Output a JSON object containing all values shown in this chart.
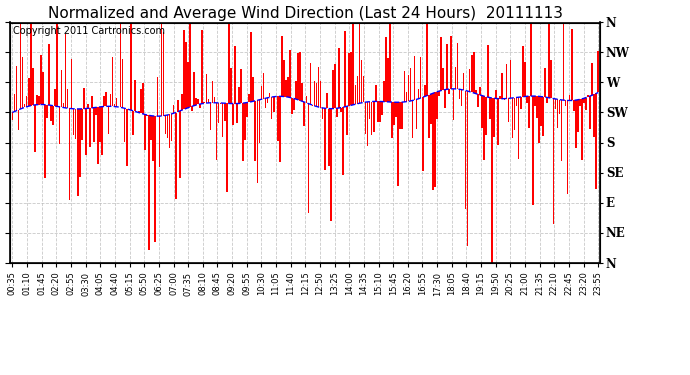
{
  "title": "Normalized and Average Wind Direction (Last 24 Hours)  20111113",
  "copyright": "Copyright 2011 Cartronics.com",
  "ytick_labels": [
    "N",
    "NW",
    "W",
    "SW",
    "S",
    "SE",
    "E",
    "NE",
    "N"
  ],
  "ytick_values": [
    360,
    315,
    270,
    225,
    180,
    135,
    90,
    45,
    0
  ],
  "ymin": 0,
  "ymax": 360,
  "background_color": "#ffffff",
  "grid_color": "#aaaaaa",
  "bar_color": "#ff0000",
  "line_color": "#0000ff",
  "title_fontsize": 11,
  "copyright_fontsize": 7,
  "xtick_labels": [
    "00:35",
    "01:10",
    "01:45",
    "02:20",
    "02:55",
    "03:30",
    "04:05",
    "04:40",
    "05:15",
    "05:50",
    "06:25",
    "07:00",
    "07:35",
    "08:10",
    "08:45",
    "09:20",
    "09:55",
    "10:30",
    "11:05",
    "11:40",
    "12:15",
    "12:50",
    "13:25",
    "14:00",
    "14:35",
    "15:10",
    "15:45",
    "16:20",
    "16:55",
    "17:30",
    "18:05",
    "18:40",
    "19:15",
    "19:50",
    "20:25",
    "21:00",
    "21:35",
    "22:10",
    "22:45",
    "23:20",
    "23:55"
  ]
}
